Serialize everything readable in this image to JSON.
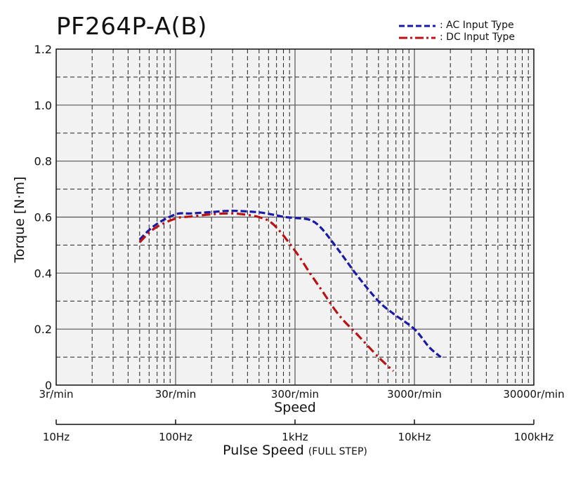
{
  "chart_data": {
    "type": "line",
    "title": "PF264P-A(B)",
    "xlabel": "Speed",
    "xlabel2": "Pulse Speed",
    "xlabel2_note": "(FULL STEP)",
    "ylabel": "Torque [N·m]",
    "x_scale": "log",
    "xlim": [
      3,
      30000
    ],
    "ylim": [
      0,
      1.2
    ],
    "grid": true,
    "legend_position": "top-right",
    "y_ticks": [
      "0",
      "0.2",
      "0.4",
      "0.6",
      "0.8",
      "1.0",
      "1.2"
    ],
    "y_tick_values": [
      0,
      0.2,
      0.4,
      0.6,
      0.8,
      1.0,
      1.2
    ],
    "x_ticks": [
      "3r/min",
      "30r/min",
      "300r/min",
      "3000r/min",
      "30000r/min"
    ],
    "x_tick_values": [
      3,
      30,
      300,
      3000,
      30000
    ],
    "x2_ticks": [
      "10Hz",
      "100Hz",
      "1kHz",
      "10kHz",
      "100kHz"
    ],
    "x2_tick_values": [
      3,
      30,
      300,
      3000,
      30000
    ],
    "series": [
      {
        "name": ": AC Input Type",
        "color": "#1a1aa8",
        "dash": "dashed",
        "x": [
          15,
          20,
          30,
          40,
          60,
          80,
          100,
          150,
          200,
          250,
          300,
          400,
          500,
          700,
          1000,
          1500,
          2000,
          3000,
          4000,
          5000
        ],
        "y": [
          0.52,
          0.57,
          0.61,
          0.613,
          0.618,
          0.622,
          0.622,
          0.617,
          0.608,
          0.6,
          0.597,
          0.59,
          0.56,
          0.48,
          0.39,
          0.3,
          0.255,
          0.2,
          0.135,
          0.1
        ]
      },
      {
        "name": ": DC Input Type",
        "color": "#bb1111",
        "dash": "dash-dot",
        "x": [
          15,
          20,
          30,
          40,
          60,
          80,
          100,
          150,
          200,
          300,
          400,
          500,
          700,
          1000,
          1500,
          2000
        ],
        "y": [
          0.51,
          0.56,
          0.595,
          0.602,
          0.61,
          0.613,
          0.612,
          0.6,
          0.572,
          0.48,
          0.4,
          0.34,
          0.25,
          0.18,
          0.1,
          0.05
        ]
      }
    ]
  }
}
